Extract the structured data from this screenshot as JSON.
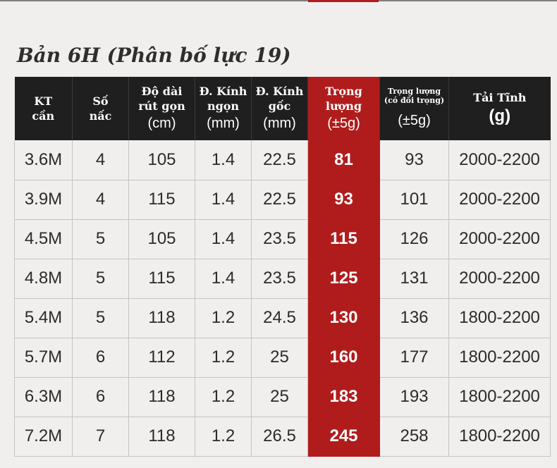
{
  "title": "Bản 6H (Phân bố lực 19)",
  "headers": {
    "length": [
      "KT",
      "cần"
    ],
    "sections": [
      "Số",
      "nấc"
    ],
    "retracted": [
      "Độ dài",
      "rút gọn",
      "(cm)"
    ],
    "tip": [
      "Đ. Kính",
      "ngọn",
      "(mm)"
    ],
    "butt": [
      "Đ. Kính",
      "gốc",
      "(mm)"
    ],
    "weight": [
      "Trọng",
      "lượng",
      "(±5g)"
    ],
    "weight_counter": [
      "Trọng lượng",
      "(có đối trọng)",
      "(±5g)"
    ],
    "load": [
      "Tải Tĩnh",
      "(g)"
    ]
  },
  "rows": [
    {
      "length": "3.6M",
      "sections": "4",
      "retracted": "105",
      "tip": "1.4",
      "butt": "22.5",
      "weight": "81",
      "weight_counter": "93",
      "load": "2000-2200"
    },
    {
      "length": "3.9M",
      "sections": "4",
      "retracted": "115",
      "tip": "1.4",
      "butt": "22.5",
      "weight": "93",
      "weight_counter": "101",
      "load": "2000-2200"
    },
    {
      "length": "4.5M",
      "sections": "5",
      "retracted": "105",
      "tip": "1.4",
      "butt": "23.5",
      "weight": "115",
      "weight_counter": "126",
      "load": "2000-2200"
    },
    {
      "length": "4.8M",
      "sections": "5",
      "retracted": "115",
      "tip": "1.4",
      "butt": "23.5",
      "weight": "125",
      "weight_counter": "131",
      "load": "2000-2200"
    },
    {
      "length": "5.4M",
      "sections": "5",
      "retracted": "118",
      "tip": "1.2",
      "butt": "24.5",
      "weight": "130",
      "weight_counter": "136",
      "load": "1800-2200"
    },
    {
      "length": "5.7M",
      "sections": "6",
      "retracted": "112",
      "tip": "1.2",
      "butt": "25",
      "weight": "160",
      "weight_counter": "177",
      "load": "1800-2200"
    },
    {
      "length": "6.3M",
      "sections": "6",
      "retracted": "118",
      "tip": "1.2",
      "butt": "25",
      "weight": "183",
      "weight_counter": "193",
      "load": "1800-2200"
    },
    {
      "length": "7.2M",
      "sections": "7",
      "retracted": "118",
      "tip": "1.2",
      "butt": "26.5",
      "weight": "245",
      "weight_counter": "258",
      "load": "1800-2200"
    }
  ],
  "colors": {
    "header_bg": "#1f1f1f",
    "accent_red": "#b01c1c",
    "background": "#f0efed"
  }
}
